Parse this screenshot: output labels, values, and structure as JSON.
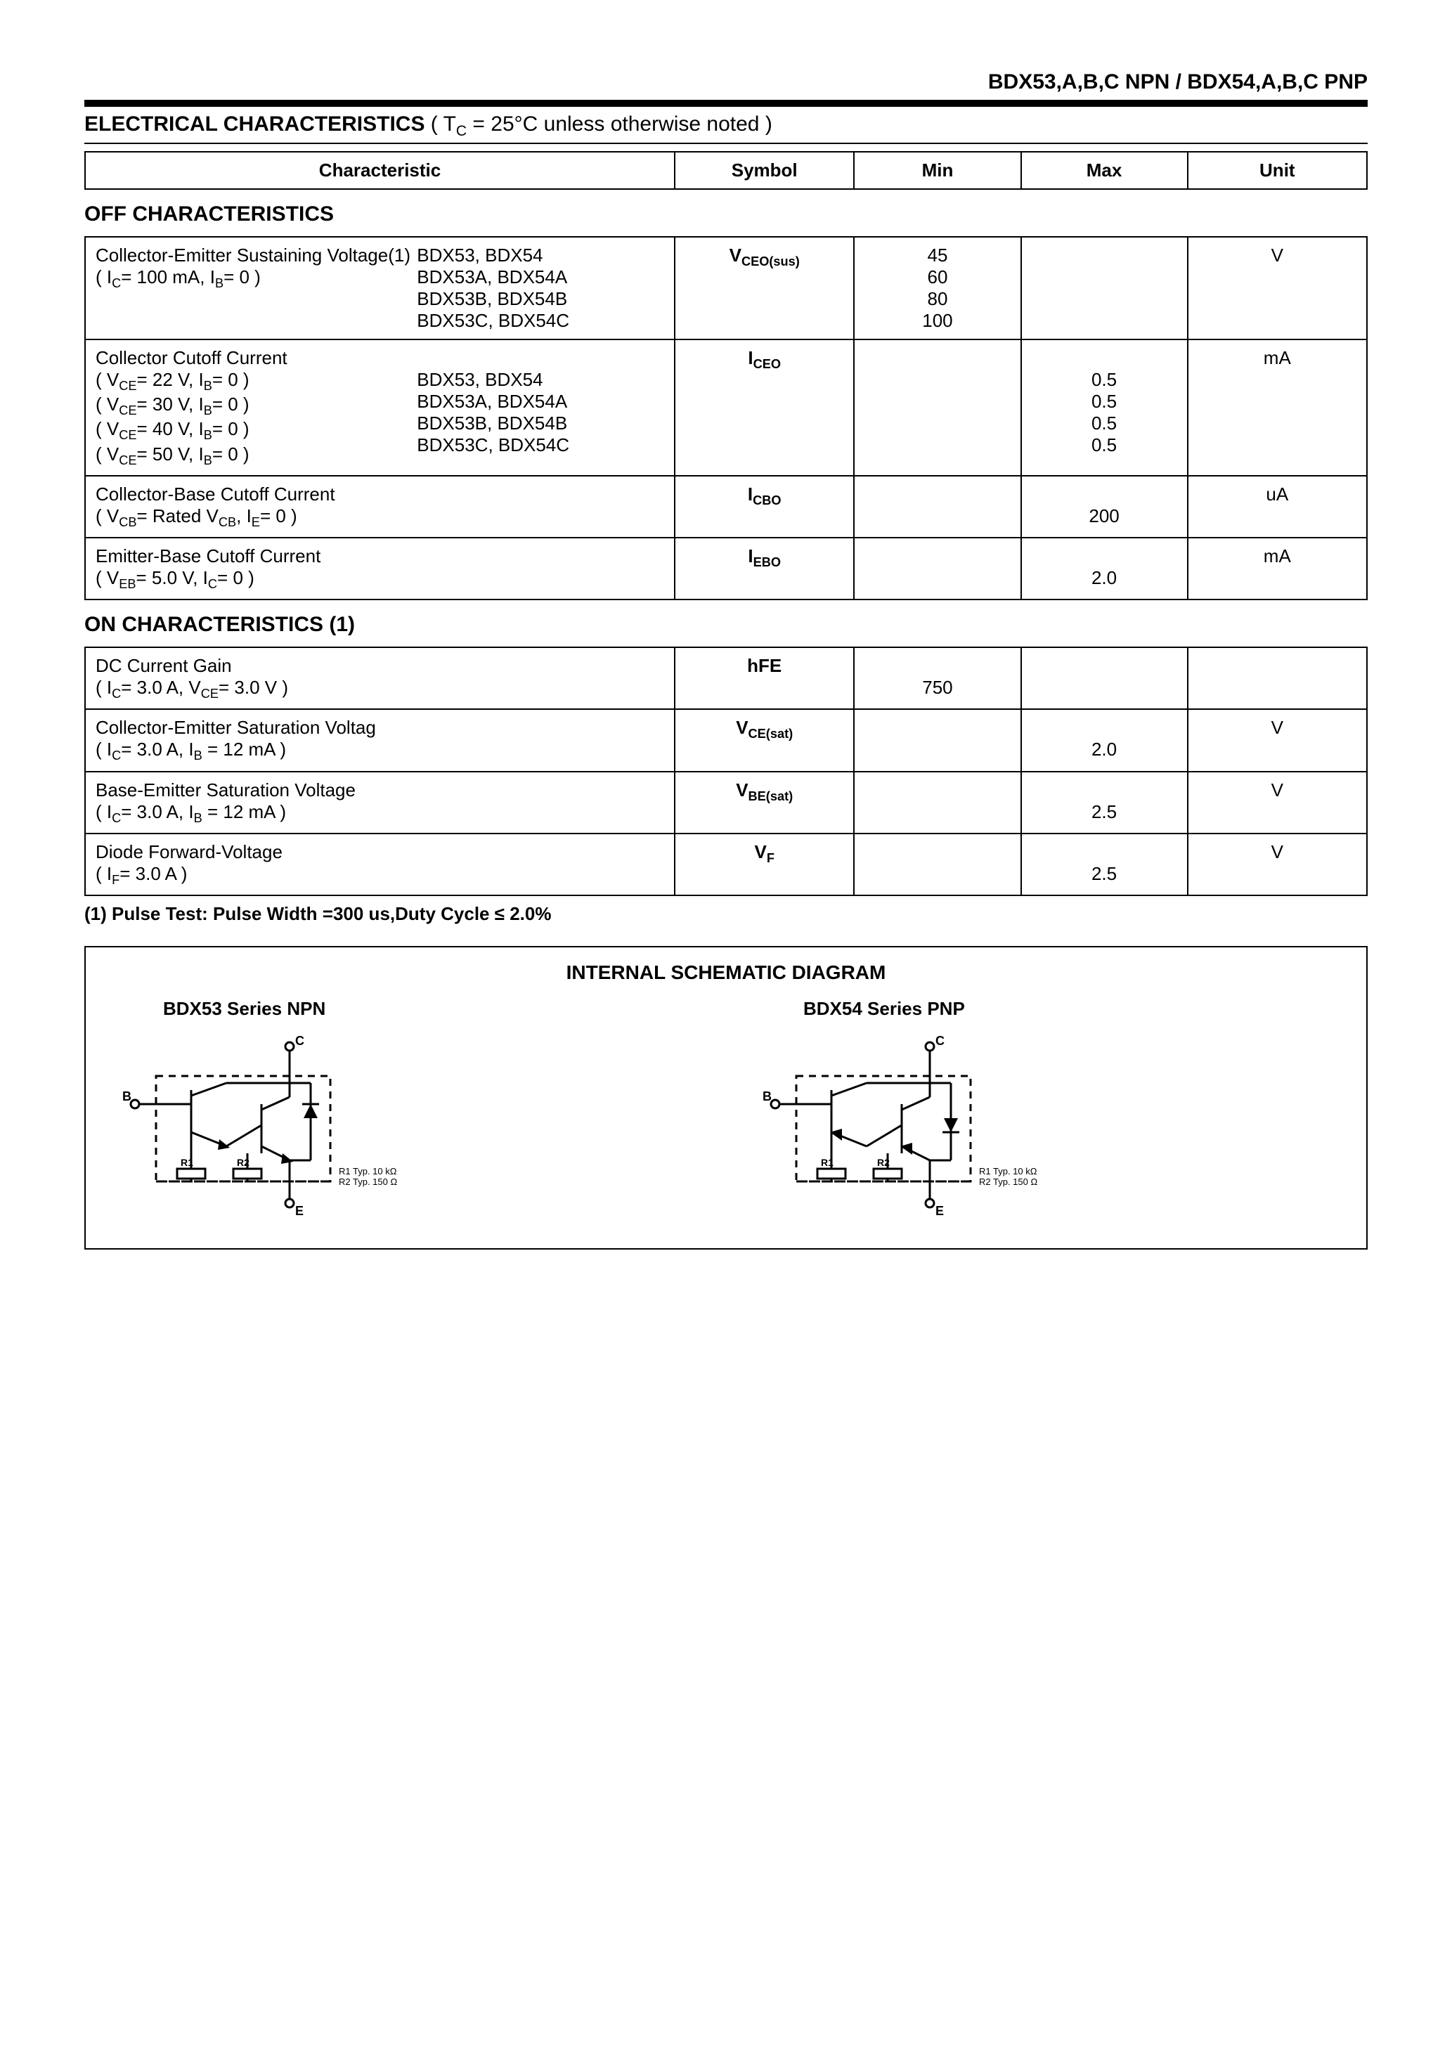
{
  "header": "BDX53,A,B,C  NPN  /  BDX54,A,B,C PNP",
  "title": "ELECTRICAL CHARACTERISTICS ( T_C = 25°C unless otherwise noted )",
  "columns": {
    "characteristic": "Characteristic",
    "symbol": "Symbol",
    "min": "Min",
    "max": "Max",
    "unit": "Unit"
  },
  "off_title": "OFF CHARACTERISTICS",
  "on_title": "ON CHARACTERISTICS (1)",
  "off_rows": [
    {
      "char_left": "Collector-Emitter Sustaining Voltage(1)\n( I_C= 100 mA, I_B= 0 )",
      "char_right": "BDX53,  BDX54\nBDX53A, BDX54A\nBDX53B, BDX54B\nBDX53C, BDX54C",
      "symbol": "V_CEO(sus)",
      "min": "45\n60\n80\n100",
      "max": "",
      "unit": "V"
    },
    {
      "char_left": "Collector Cutoff Current\n( V_CE= 22 V, I_B= 0 )\n( V_CE= 30 V, I_B= 0 )\n( V_CE= 40 V, I_B= 0 )\n( V_CE= 50 V, I_B= 0 )",
      "char_right": "\nBDX53,  BDX54\nBDX53A, BDX54A\nBDX53B, BDX54B\nBDX53C, BDX54C",
      "symbol": "I_CEO",
      "min": "",
      "max": "\n0.5\n0.5\n0.5\n0.5",
      "unit": "mA"
    },
    {
      "char_left": "Collector-Base Cutoff Current\n( V_CB= Rated  V_CB, I_E= 0 )",
      "char_right": "",
      "symbol": "I_CBO",
      "min": "",
      "max": "\n200",
      "unit": "uA"
    },
    {
      "char_left": "Emitter-Base Cutoff Current\n( V_EB= 5.0 V, I_C= 0 )",
      "char_right": "",
      "symbol": "I_EBO",
      "min": "",
      "max": "\n2.0",
      "unit": "mA"
    }
  ],
  "on_rows": [
    {
      "char_left": "DC Current Gain\n( I_C= 3.0 A, V_CE= 3.0 V )",
      "char_right": "",
      "symbol": "hFE",
      "min": "\n750",
      "max": "",
      "unit": ""
    },
    {
      "char_left": "Collector-Emitter Saturation Voltag\n( I_C= 3.0 A,  I_B =  12 mA )",
      "char_right": "",
      "symbol": "V_CE(sat)",
      "min": "",
      "max": "\n2.0",
      "unit": "V"
    },
    {
      "char_left": "Base-Emitter Saturation Voltage\n( I_C= 3.0 A,  I_B =  12 mA )",
      "char_right": "",
      "symbol": "V_BE(sat)",
      "min": "",
      "max": "\n2.5",
      "unit": "V"
    },
    {
      "char_left": "Diode Forward-Voltage\n( I_F= 3.0 A )",
      "char_right": "",
      "symbol": "V_F",
      "min": "",
      "max": "\n2.5",
      "unit": "V"
    }
  ],
  "footnote": "(1) Pulse Test: Pulse Width =300 us,Duty Cycle ≤  2.0%",
  "schematic": {
    "title": "INTERNAL SCHEMATIC DIAGRAM",
    "npn_label": "BDX53 Series  NPN",
    "pnp_label": "BDX54 Series  PNP",
    "pin_c": "C",
    "pin_b": "B",
    "pin_e": "E",
    "r1": "R1",
    "r2": "R2",
    "rnote": "R1 Typ. 10 kΩ\nR2 Typ. 150 Ω"
  }
}
